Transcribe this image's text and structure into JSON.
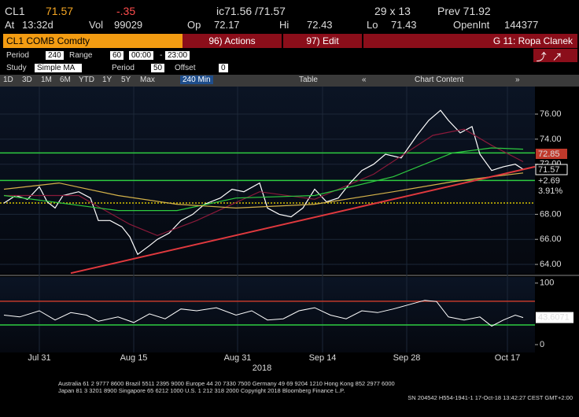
{
  "header": {
    "ticker": "CL1",
    "last": "71.57",
    "change": "-.35",
    "bid_ask": "ic71.56 /71.57",
    "size": "29 x 13",
    "prev": "Prev 71.92",
    "at_label": "At",
    "time": "13:32d",
    "vol_label": "Vol",
    "vol": "99029",
    "op_label": "Op",
    "op": "72.17",
    "hi_label": "Hi",
    "hi": "72.43",
    "lo_label": "Lo",
    "lo": "71.43",
    "oi_label": "OpenInt",
    "oi": "144377"
  },
  "menu": {
    "security": "CL1 COMB Comdty",
    "actions": "96) Actions",
    "edit": "97) Edit",
    "page": "G 11: Ropa Clanek"
  },
  "settings": {
    "period_label": "Period",
    "period": "240",
    "range_label": "Range",
    "range": "60",
    "start": "00:00",
    "dash": "-",
    "end": "23:00",
    "study_label": "Study",
    "study": "Simple MA",
    "ma_period_label": "Period",
    "ma_period": "50",
    "offset_label": "Offset",
    "offset": "0"
  },
  "toolbar": {
    "ranges": [
      "1D",
      "3D",
      "1M",
      "6M",
      "YTD",
      "1Y",
      "5Y",
      "Max"
    ],
    "interval": "240 Min",
    "table": "Table",
    "chart_content": "Chart Content"
  },
  "chart": {
    "xlim": [
      0,
      136
    ],
    "xticks": [
      {
        "value": 10,
        "label": "Jul 31"
      },
      {
        "value": 34,
        "label": "Aug 15"
      },
      {
        "value": 60.4,
        "label": "Aug 31"
      },
      {
        "value": 82,
        "label": "Sep 14"
      },
      {
        "value": 103.4,
        "label": "Sep 28"
      },
      {
        "value": 129,
        "label": "Oct 17"
      }
    ],
    "year": "2018",
    "ylim": [
      63.25,
      78.2
    ],
    "yticks": [
      {
        "value": 64,
        "label": "64.00"
      },
      {
        "value": 66,
        "label": "66.00"
      },
      {
        "value": 68,
        "label": "68.00"
      },
      {
        "value": 72,
        "label": "72.00"
      },
      {
        "value": 74,
        "label": "74.00"
      },
      {
        "value": 76,
        "label": "76.00"
      }
    ],
    "series": [
      {
        "name": "price",
        "color": "#ffffff",
        "x": [
          1,
          4,
          7,
          10,
          12,
          14,
          16,
          20,
          23,
          25,
          28,
          31,
          33,
          35,
          38,
          40,
          43,
          46,
          49,
          52,
          56,
          59,
          62,
          66,
          68,
          71,
          74,
          77,
          80,
          83,
          86,
          89,
          92,
          95,
          98,
          102,
          106,
          109,
          112,
          114,
          117,
          120,
          122,
          125,
          128,
          131,
          133
        ],
        "values": [
          68.9,
          69.5,
          69.2,
          70.2,
          69.0,
          68.5,
          69.5,
          69.8,
          69.3,
          67.5,
          67.5,
          67.0,
          66.2,
          64.8,
          65.5,
          66.0,
          66.5,
          67.5,
          68.0,
          68.8,
          69.3,
          70.0,
          69.8,
          70.5,
          68.5,
          68.0,
          67.8,
          68.5,
          70.0,
          69.0,
          69.3,
          70.5,
          71.5,
          72.0,
          72.8,
          72.5,
          74.3,
          75.5,
          76.3,
          75.5,
          74.5,
          75.0,
          72.8,
          71.5,
          71.8,
          72.0,
          71.6
        ]
      },
      {
        "name": "ma-red",
        "color": "#8b1a3a",
        "x": [
          1,
          20,
          33,
          40,
          50,
          66,
          80,
          95,
          110,
          118,
          125,
          133
        ],
        "values": [
          69.5,
          69.5,
          67.2,
          66.3,
          67.5,
          69.8,
          69.2,
          71.2,
          74.3,
          74.8,
          73.5,
          72.2
        ]
      },
      {
        "name": "ma-green",
        "color": "#2ecc40",
        "x": [
          1,
          30,
          45,
          60,
          80,
          100,
          115,
          125,
          133
        ],
        "values": [
          69.5,
          68.3,
          68.3,
          69.3,
          69.5,
          71.0,
          72.9,
          73.3,
          73.2
        ]
      },
      {
        "name": "ma-yellow",
        "color": "#d4b24a",
        "x": [
          1,
          15,
          30,
          45,
          60,
          80,
          100,
          115,
          125,
          133
        ],
        "values": [
          70.0,
          70.5,
          69.5,
          68.8,
          68.5,
          68.8,
          69.8,
          70.6,
          71.0,
          71.3
        ]
      },
      {
        "name": "trendline",
        "color": "#e0393e",
        "x": [
          18,
          136
        ],
        "values": [
          63.3,
          71.8
        ]
      }
    ],
    "levels": [
      {
        "value": 72.9,
        "color": "#2ecc40"
      },
      {
        "value": 70.7,
        "color": "#2ecc40"
      },
      {
        "value": 68.9,
        "color": "#d4c200",
        "dotted": true
      }
    ],
    "price_tags": [
      "72.85",
      "71.57",
      "+2.69",
      "3.91%"
    ],
    "rsi": {
      "ylim": [
        -12.8,
        110
      ],
      "yticks": [
        0,
        100
      ],
      "last_label": "43.6071",
      "x": [
        1,
        5,
        10,
        14,
        18,
        22,
        25,
        30,
        34,
        38,
        42,
        46,
        50,
        55,
        60,
        64,
        68,
        72,
        76,
        80,
        84,
        88,
        92,
        96,
        100,
        104,
        108,
        111,
        114,
        118,
        122,
        125,
        128,
        131,
        133
      ],
      "values": [
        48,
        45,
        55,
        40,
        52,
        48,
        38,
        45,
        36,
        50,
        42,
        58,
        55,
        60,
        48,
        55,
        40,
        42,
        55,
        60,
        48,
        42,
        55,
        52,
        58,
        65,
        72,
        70,
        45,
        40,
        45,
        30,
        40,
        48,
        44
      ],
      "levels": [
        {
          "value": 70.5,
          "color": "#c0392b"
        },
        {
          "value": 32,
          "color": "#2ecc40"
        }
      ]
    }
  },
  "footer": [
    "Australia 61 2 9777 8600 Brazil 5511 2395 9000 Europe 44 20 7330 7500 Germany 49 69 9204 1210 Hong Kong 852 2977 6000",
    "Japan 81 3 3201 8900        Singapore 65 6212 1000        U.S. 1 212 318 2000              Copyright 2018 Bloomberg Finance L.P.",
    "SN 204542 H554-1941-1 17-Oct-18 13:42:27 CEST GMT+2:00"
  ]
}
